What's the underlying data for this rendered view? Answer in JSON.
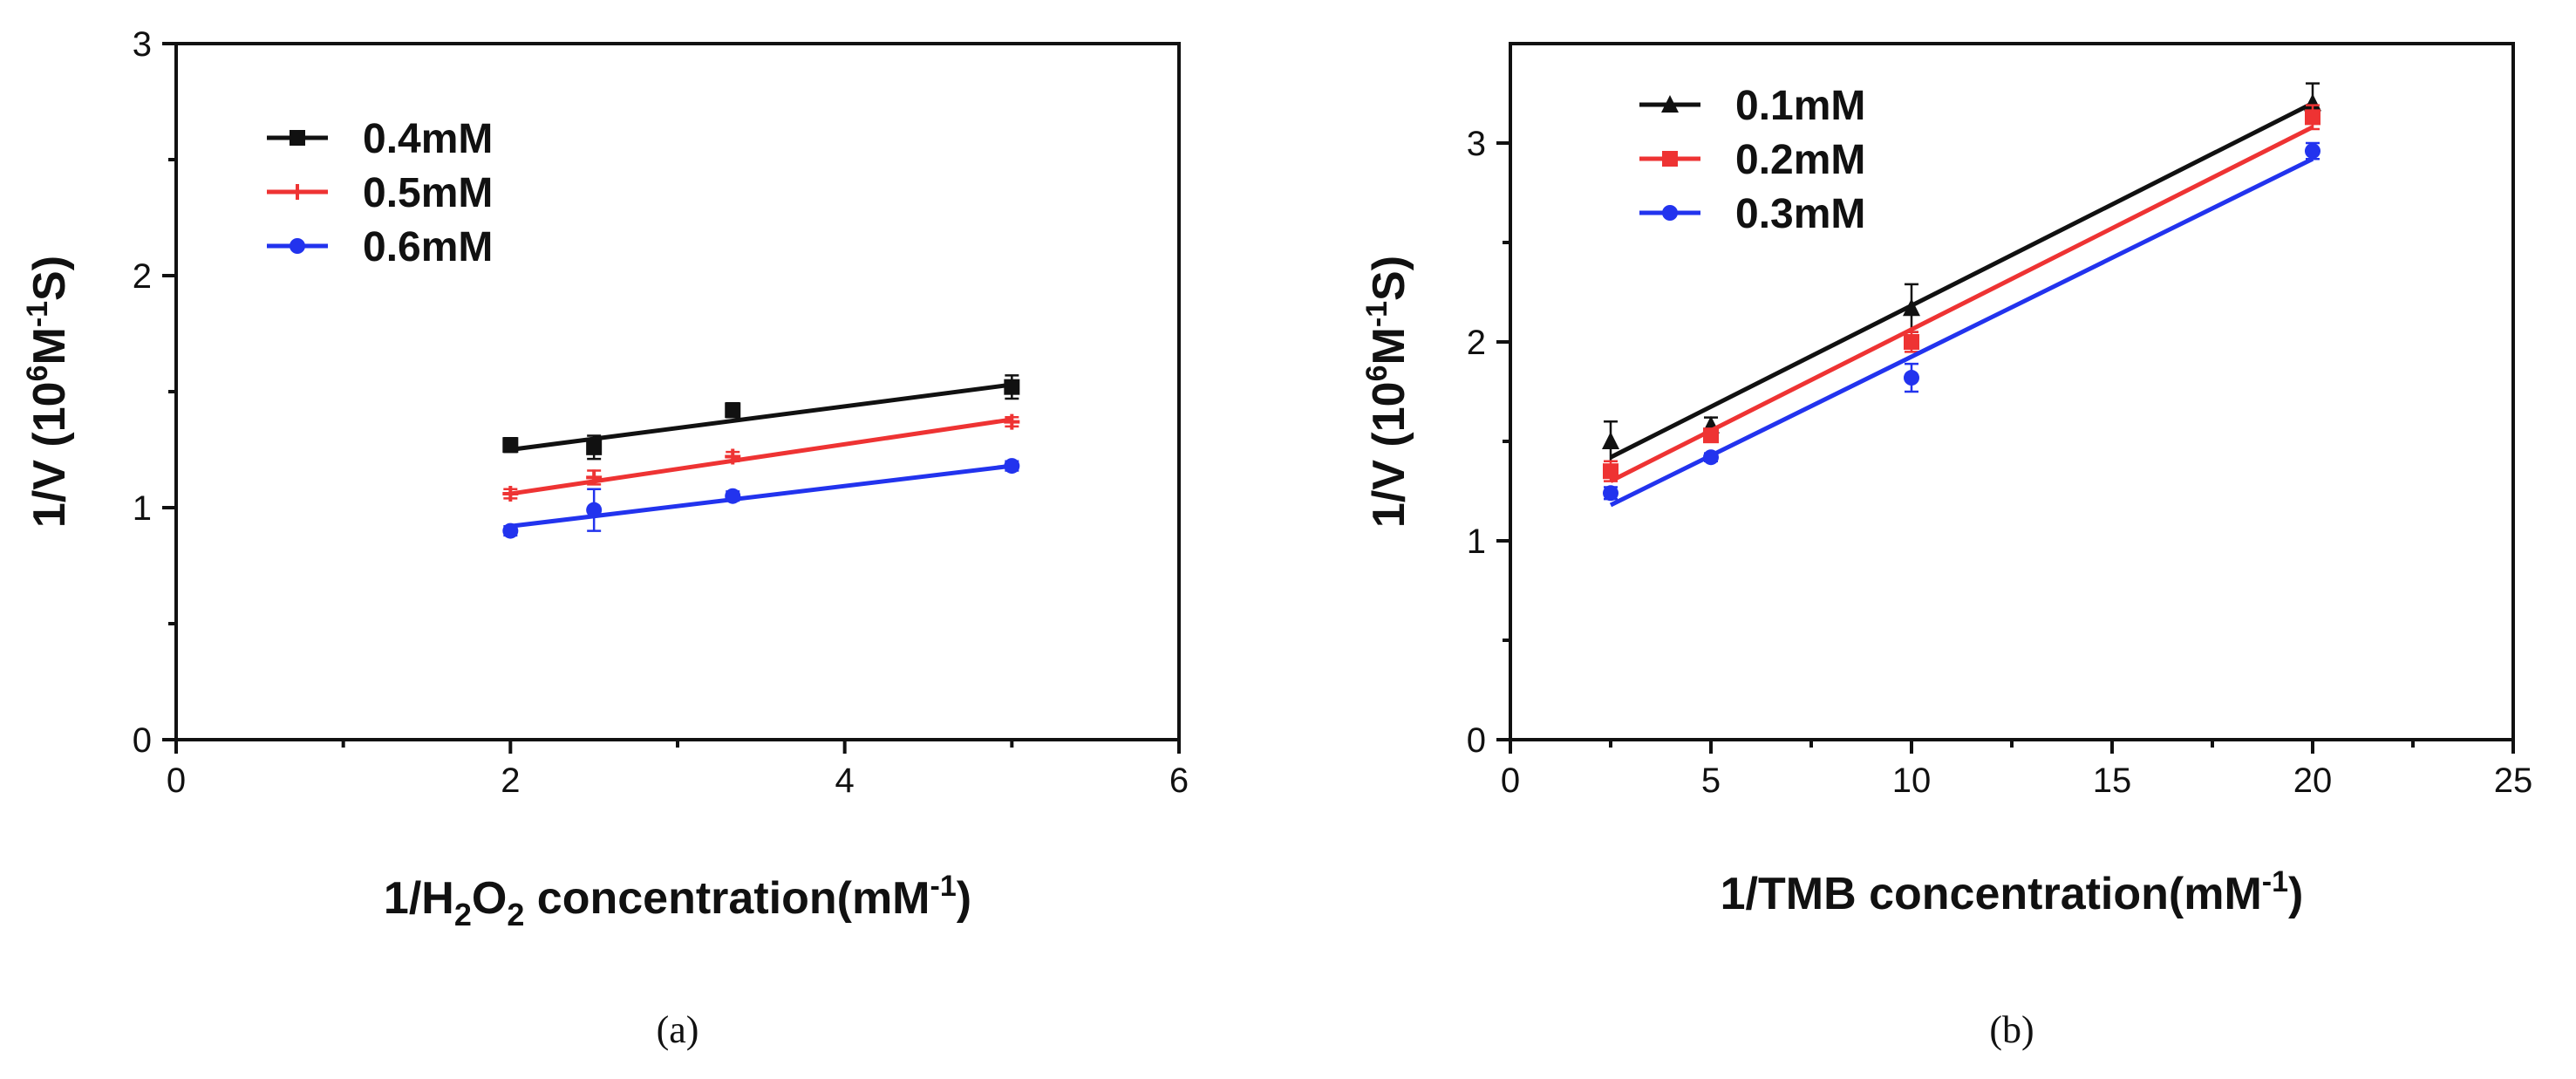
{
  "chart_data": [
    {
      "id": "a",
      "type": "line",
      "caption": "(a)",
      "xlabel": "1/H2O2 concentration(mM-1)",
      "xlabel_parts": {
        "pre": "1/H",
        "sub1": "2",
        "mid": "O",
        "sub2": "2",
        "post": " concentration(mM",
        "sup": "-1",
        "end": ")"
      },
      "ylabel": "1/V (10^6 M^-1 S)",
      "ylabel_parts": {
        "pre": "1/V (10",
        "sup1": "6",
        "mid": "M",
        "sup2": "-1",
        "post": "S)"
      },
      "xlim": [
        0,
        6
      ],
      "ylim": [
        0,
        3
      ],
      "xticks": [
        0,
        2,
        4,
        6
      ],
      "yticks": [
        0,
        1,
        2,
        3
      ],
      "xtick_labels": [
        "0",
        "2",
        "4",
        "6"
      ],
      "ytick_labels": [
        "0",
        "1",
        "2",
        "3"
      ],
      "legend_position": "top-left",
      "series": [
        {
          "name": "0.4mM",
          "color": "#111111",
          "marker": "square",
          "x": [
            2,
            2.5,
            3.33,
            5
          ],
          "y": [
            1.27,
            1.26,
            1.42,
            1.52
          ],
          "err": [
            0.03,
            0.05,
            0.03,
            0.05
          ],
          "fit": [
            1.25,
            1.53
          ]
        },
        {
          "name": "0.5mM",
          "color": "#ee3333",
          "marker": "cross",
          "x": [
            2,
            2.5,
            3.33,
            5
          ],
          "y": [
            1.06,
            1.13,
            1.22,
            1.37
          ],
          "err": [
            0.02,
            0.03,
            0.02,
            0.02
          ],
          "fit": [
            1.06,
            1.38
          ]
        },
        {
          "name": "0.6mM",
          "color": "#2233ee",
          "marker": "dot",
          "x": [
            2,
            2.5,
            3.33,
            5
          ],
          "y": [
            0.9,
            0.99,
            1.05,
            1.18
          ],
          "err": [
            0.02,
            0.09,
            0.02,
            0.02
          ],
          "fit": [
            0.92,
            1.18
          ]
        }
      ]
    },
    {
      "id": "b",
      "type": "line",
      "caption": "(b)",
      "xlabel": "1/TMB concentration(mM-1)",
      "xlabel_parts": {
        "pre": "1/TMB concentration(mM",
        "sup": "-1",
        "end": ")"
      },
      "ylabel": "1/V (10^6 M^-1 S)",
      "ylabel_parts": {
        "pre": "1/V (10",
        "sup1": "6",
        "mid": "M",
        "sup2": "-1",
        "post": "S)"
      },
      "xlim": [
        0,
        25
      ],
      "ylim": [
        0,
        3.5
      ],
      "xticks": [
        0,
        5,
        10,
        15,
        20,
        25
      ],
      "yticks": [
        0,
        1,
        2,
        3
      ],
      "xtick_labels": [
        "0",
        "5",
        "10",
        "15",
        "20",
        "25"
      ],
      "ytick_labels": [
        "0",
        "1",
        "2",
        "3"
      ],
      "legend_position": "top-left",
      "series": [
        {
          "name": "0.1mM",
          "color": "#111111",
          "marker": "triangle",
          "x": [
            2.5,
            5,
            10,
            20
          ],
          "y": [
            1.5,
            1.58,
            2.17,
            3.2
          ],
          "err": [
            0.1,
            0.04,
            0.12,
            0.1
          ],
          "fit": [
            1.42,
            3.2
          ]
        },
        {
          "name": "0.2mM",
          "color": "#ee3333",
          "marker": "square",
          "x": [
            2.5,
            5,
            10,
            20
          ],
          "y": [
            1.35,
            1.53,
            2.0,
            3.13
          ],
          "err": [
            0.05,
            0.03,
            0.05,
            0.06
          ],
          "fit": [
            1.3,
            3.08
          ]
        },
        {
          "name": "0.3mM",
          "color": "#2233ee",
          "marker": "dot",
          "x": [
            2.5,
            5,
            10,
            20
          ],
          "y": [
            1.24,
            1.42,
            1.82,
            2.96
          ],
          "err": [
            0.03,
            0.02,
            0.07,
            0.04
          ],
          "fit": [
            1.18,
            2.92
          ]
        }
      ]
    }
  ]
}
